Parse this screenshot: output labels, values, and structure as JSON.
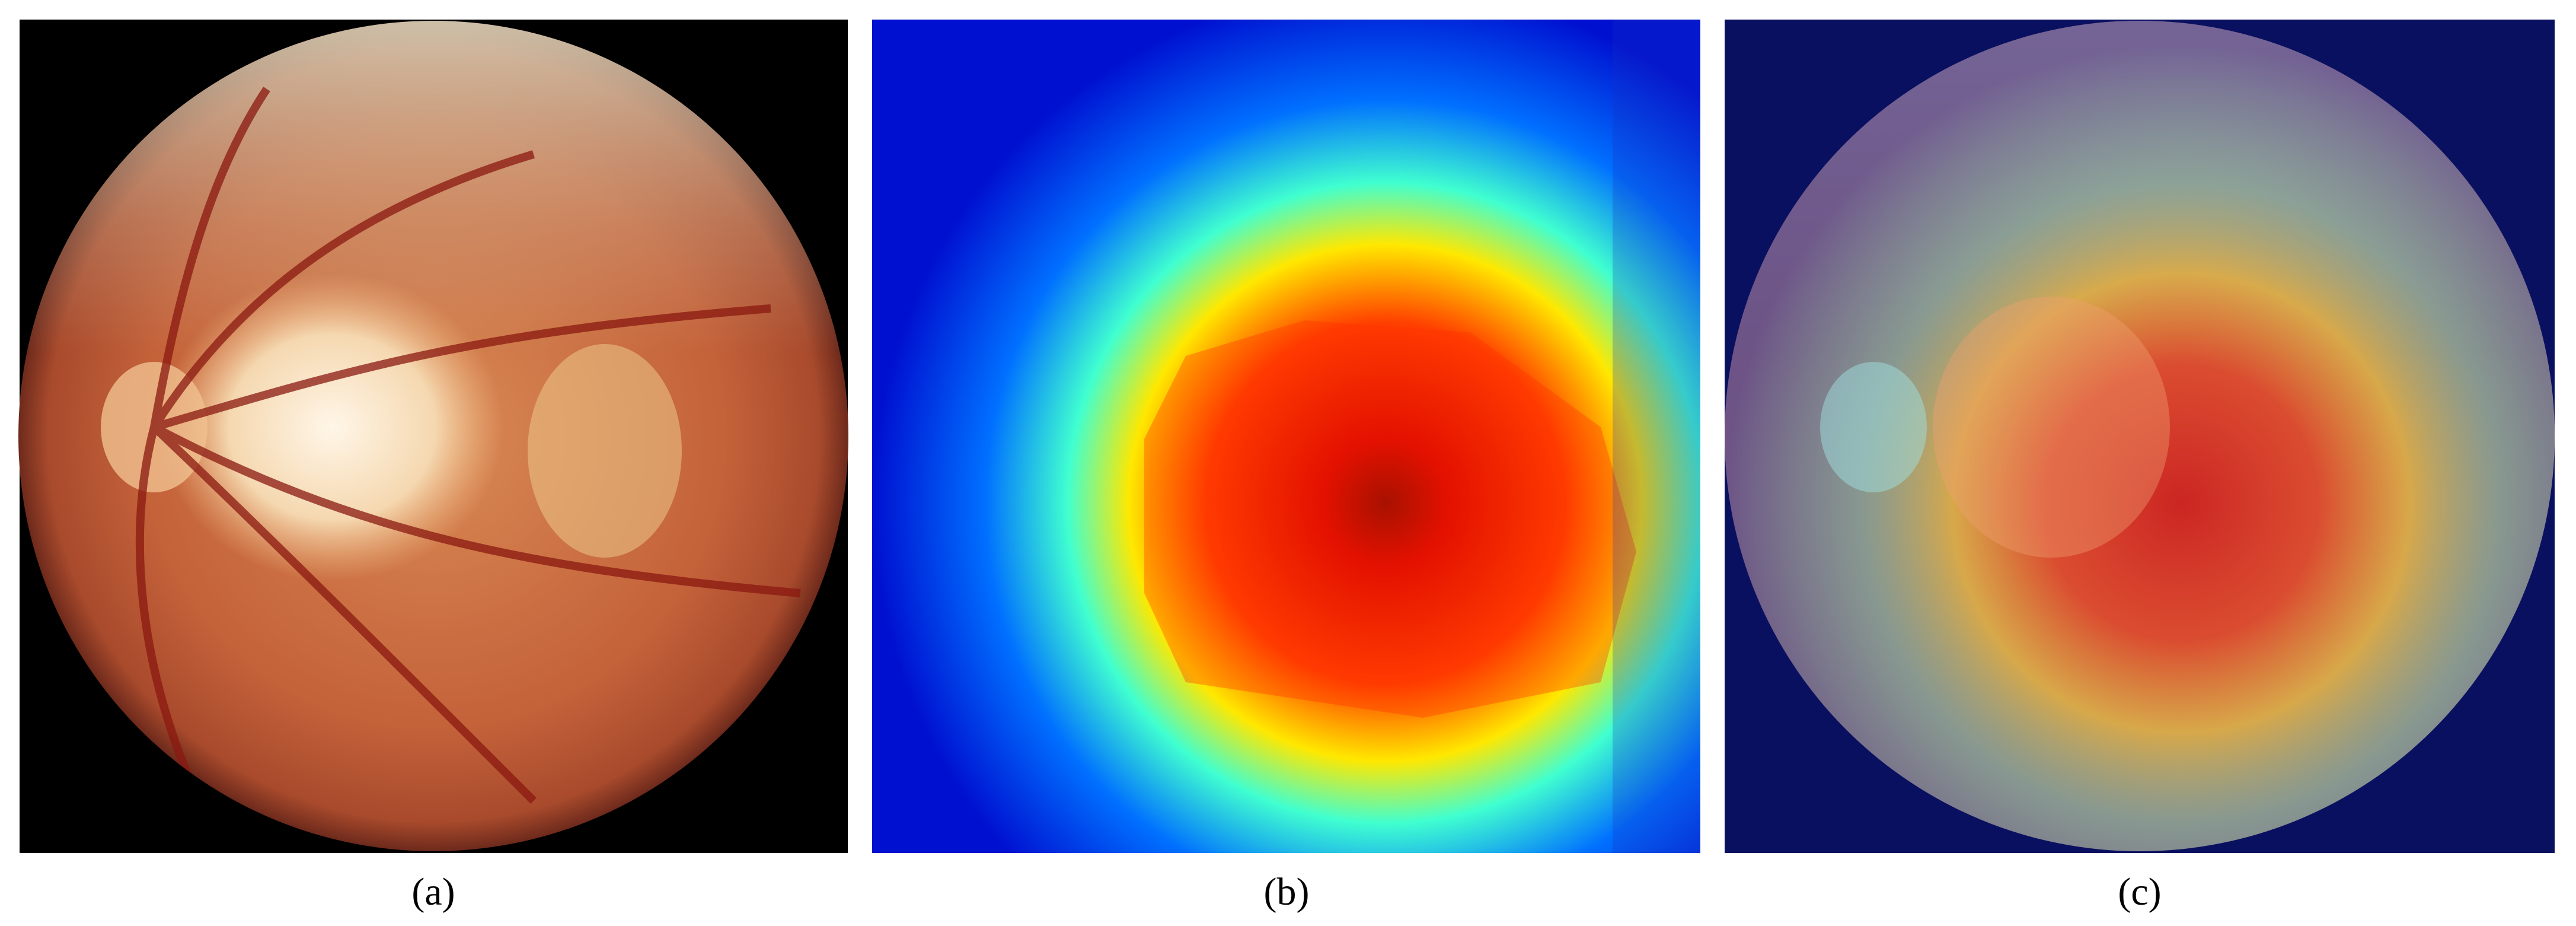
{
  "figure": {
    "panels": [
      {
        "label": "(a)"
      },
      {
        "label": "(b)"
      },
      {
        "label": "(c)"
      }
    ]
  }
}
